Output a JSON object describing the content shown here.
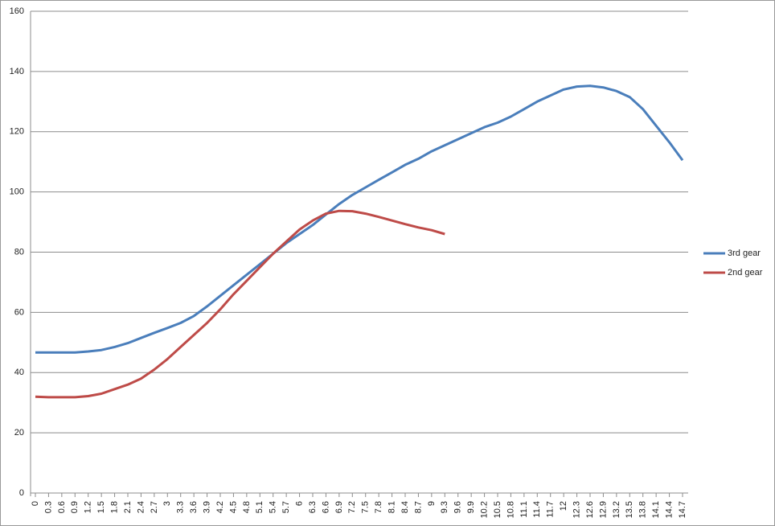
{
  "chart_data": {
    "type": "line",
    "x": [
      0,
      0.3,
      0.6,
      0.9,
      1.2,
      1.5,
      1.8,
      2.1,
      2.4,
      2.7,
      3,
      3.3,
      3.6,
      3.9,
      4.2,
      4.5,
      4.8,
      5.1,
      5.4,
      5.7,
      6,
      6.3,
      6.6,
      6.9,
      7.2,
      7.5,
      7.8,
      8.1,
      8.4,
      8.7,
      9,
      9.3,
      9.6,
      9.9,
      10.2,
      10.5,
      10.8,
      11.1,
      11.4,
      11.7,
      12,
      12.3,
      12.6,
      12.9,
      13.2,
      13.5,
      13.8,
      14.1,
      14.4,
      14.7
    ],
    "series": [
      {
        "name": "3rd gear",
        "color": "#4a7ebb",
        "values": [
          46.7,
          46.7,
          46.7,
          46.7,
          47,
          47.5,
          48.5,
          49.8,
          51.5,
          53.2,
          54.8,
          56.5,
          58.8,
          62,
          65.5,
          69,
          72.5,
          76,
          79.5,
          83,
          86,
          89,
          92.5,
          96,
          99,
          101.5,
          104,
          106.5,
          109,
          111,
          113.5,
          115.5,
          117.5,
          119.5,
          121.5,
          123,
          125,
          127.5,
          130,
          132,
          134,
          135,
          135.2,
          134.7,
          133.5,
          131.5,
          127.5,
          122,
          116.5,
          110.5
        ]
      },
      {
        "name": "2nd gear",
        "color": "#be4b48",
        "values": [
          32,
          31.8,
          31.8,
          31.8,
          32.2,
          33,
          34.5,
          36,
          38,
          41,
          44.5,
          48.5,
          52.5,
          56.5,
          61,
          66,
          70.5,
          75,
          79.5,
          83.5,
          87.5,
          90.5,
          92.8,
          93.7,
          93.6,
          92.8,
          91.7,
          90.5,
          89.3,
          88.2,
          87.3,
          86,
          null,
          null,
          null,
          null,
          null,
          null,
          null,
          null,
          null,
          null,
          null,
          null,
          null,
          null,
          null,
          null,
          null,
          null
        ]
      }
    ],
    "xlim": [
      0,
      14.7
    ],
    "xticks": [
      0,
      0.3,
      0.6,
      0.9,
      1.2,
      1.5,
      1.8,
      2.1,
      2.4,
      2.7,
      3,
      3.3,
      3.6,
      3.9,
      4.2,
      4.5,
      4.8,
      5.1,
      5.4,
      5.7,
      6,
      6.3,
      6.6,
      6.9,
      7.2,
      7.5,
      7.8,
      8.1,
      8.4,
      8.7,
      9,
      9.3,
      9.6,
      9.9,
      10.2,
      10.5,
      10.8,
      11.1,
      11.4,
      11.7,
      12,
      12.3,
      12.6,
      12.9,
      13.2,
      13.5,
      13.8,
      14.1,
      14.4,
      14.7
    ],
    "ylim": [
      0,
      160
    ],
    "yticks": [
      0,
      20,
      40,
      60,
      80,
      100,
      120,
      140,
      160
    ],
    "grid": true,
    "legend": "right"
  }
}
